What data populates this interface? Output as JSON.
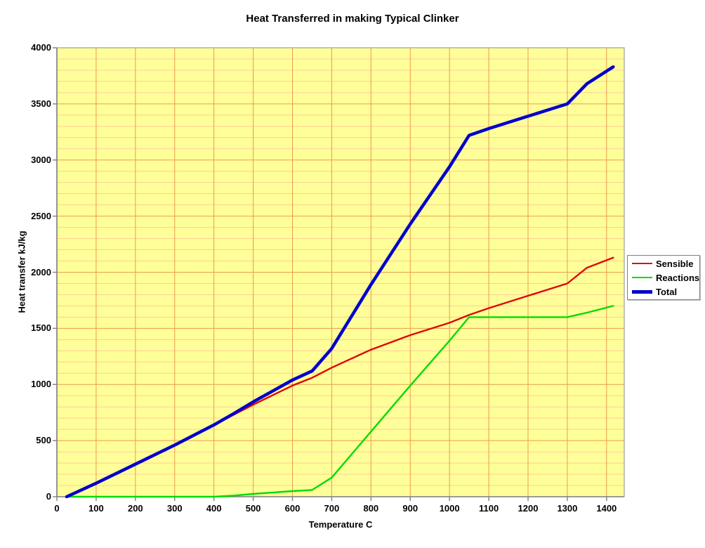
{
  "title": "Heat Transferred in making Typical Clinker",
  "axes": {
    "x": {
      "title": "Temperature C",
      "min": 0,
      "max": 1445,
      "ticks": [
        0,
        100,
        200,
        300,
        400,
        500,
        600,
        700,
        800,
        900,
        1000,
        1100,
        1200,
        1300,
        1400
      ]
    },
    "y": {
      "title": "Heat transfer kJ/kg",
      "min": 0,
      "max": 4000,
      "ticks": [
        0,
        500,
        1000,
        1500,
        2000,
        2500,
        3000,
        3500,
        4000
      ],
      "minor_interval": 100
    }
  },
  "legend": {
    "position": "right",
    "labels": [
      "Sensible",
      "Reactions",
      "Total"
    ]
  },
  "colors": {
    "plot_background": "#FFFF99",
    "grid_minor": "#FFCC99",
    "grid_major": "#EB9C4D",
    "axis": "#808080",
    "frame": "#9E9E9E",
    "sensible": "#DD0806",
    "reactions": "#00DD00",
    "total": "#0000CC",
    "text": "#000000"
  },
  "chart_data": {
    "type": "line",
    "title": "Heat Transferred in making Typical Clinker",
    "xlabel": "Temperature C",
    "ylabel": "Heat transfer kJ/kg",
    "xlim": [
      0,
      1445
    ],
    "ylim": [
      0,
      4000
    ],
    "grid": {
      "vertical_every": 100,
      "horizontal_minor_every": 100,
      "horizontal_major_every": 500
    },
    "legend_position": "right",
    "x": [
      25,
      100,
      200,
      300,
      400,
      450,
      500,
      600,
      650,
      700,
      800,
      900,
      1000,
      1050,
      1100,
      1200,
      1300,
      1350,
      1417
    ],
    "series": [
      {
        "name": "Sensible",
        "color": "#DD0806",
        "stroke_width": 2.4,
        "values": [
          0,
          120,
          290,
          460,
          640,
          730,
          820,
          990,
          1060,
          1150,
          1310,
          1440,
          1550,
          1620,
          1680,
          1790,
          1900,
          2040,
          2130
        ]
      },
      {
        "name": "Reactions",
        "color": "#00DD00",
        "stroke_width": 2.4,
        "values": [
          0,
          0,
          0,
          0,
          0,
          10,
          25,
          50,
          60,
          170,
          580,
          990,
          1390,
          1600,
          1600,
          1600,
          1600,
          1640,
          1700
        ]
      },
      {
        "name": "Total",
        "color": "#0000CC",
        "stroke_width": 4.5,
        "values": [
          0,
          120,
          290,
          460,
          640,
          740,
          845,
          1040,
          1120,
          1320,
          1890,
          2430,
          2940,
          3220,
          3280,
          3390,
          3500,
          3680,
          3830
        ]
      }
    ]
  }
}
